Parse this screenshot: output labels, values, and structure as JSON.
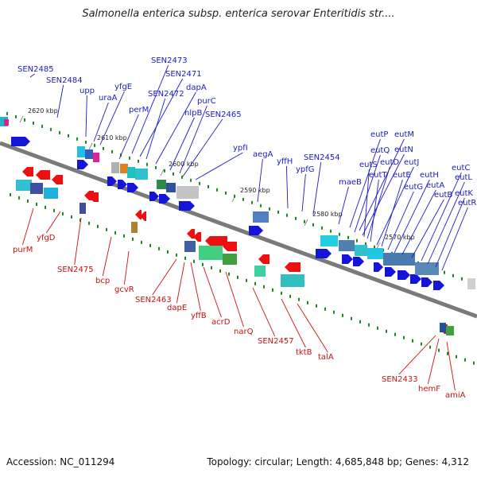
{
  "title": "Salmonella enterica subsp. enterica serovar Enteritidis str....",
  "accession": "Accession: NC_011294",
  "topology": "Topology: circular; Length: 4,685,848 bp; Genes: 4,312",
  "colors": {
    "upper_labels": "#1a1ac8",
    "lower_labels": "#cc1010",
    "backbone": "#808080",
    "ticks": "#1f8a1f"
  },
  "scale_marks": [
    {
      "id": "k2620",
      "label": "2620 kbp"
    },
    {
      "id": "k2610",
      "label": "2610 kbp"
    },
    {
      "id": "k2600",
      "label": "2600 kbp"
    },
    {
      "id": "k2590",
      "label": "2590 kbp"
    },
    {
      "id": "k2580",
      "label": "2580 kbp"
    },
    {
      "id": "k2570",
      "label": "2570 kbp"
    }
  ],
  "upper_genes": [
    "SEN2485",
    "SEN2484",
    "upp",
    "uraA",
    "yfgE",
    "perM",
    "SEN2473",
    "SEN2471",
    "SEN2472",
    "dapA",
    "nlpB",
    "purC",
    "SEN2465",
    "ypfI",
    "aegA",
    "yffH",
    "ypfG",
    "SEN2454",
    "maeB",
    "eutP",
    "eutM",
    "eutQ",
    "eutN",
    "eutS",
    "eutD",
    "eutT",
    "eutJ",
    "eutE",
    "eutG",
    "eutH",
    "eutA",
    "eutB",
    "eutC",
    "eutL",
    "eutK",
    "eutR"
  ],
  "lower_genes": [
    "purM",
    "yfgD",
    "SEN2475",
    "bcp",
    "gcvR",
    "SEN2463",
    "dapE",
    "yffB",
    "acrD",
    "narQ",
    "SEN2457",
    "tktB",
    "talA",
    "SEN2433",
    "hemF",
    "amiA"
  ]
}
